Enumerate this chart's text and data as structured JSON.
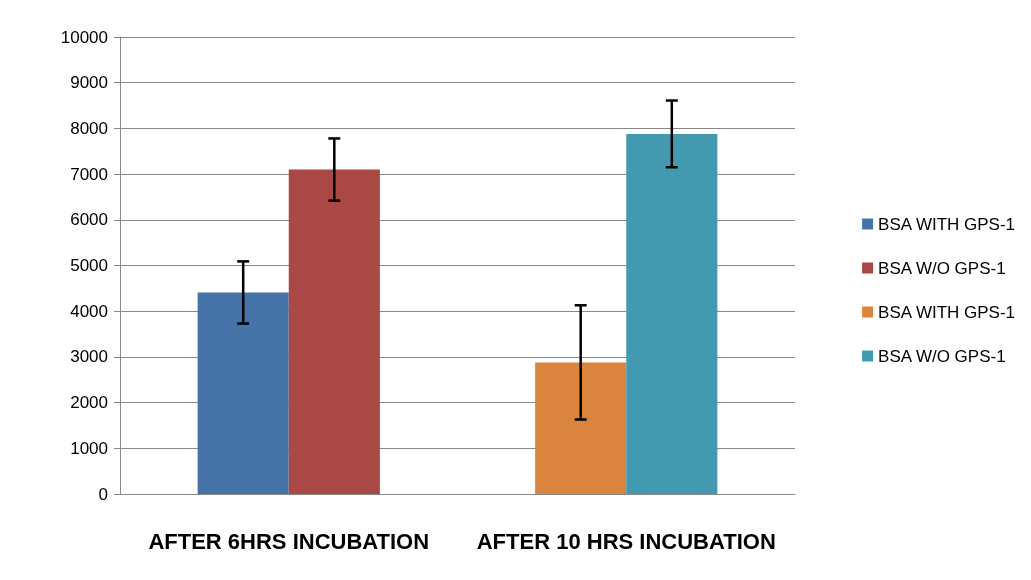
{
  "chart_data": {
    "type": "bar",
    "categories": [
      "AFTER 6HRS INCUBATION",
      "AFTER 10 HRS INCUBATION"
    ],
    "series": [
      {
        "name": "BSA WITH GPS-1",
        "color": "#4674a8",
        "values": [
          4410,
          null
        ],
        "errors": [
          680,
          null
        ]
      },
      {
        "name": "BSA W/O GPS-1",
        "color": "#aa4846",
        "values": [
          7100,
          null
        ],
        "errors": [
          680,
          null
        ]
      },
      {
        "name": "BSA WITH GPS-1",
        "color": "#db843e",
        "values": [
          null,
          2880
        ],
        "errors": [
          null,
          1250
        ]
      },
      {
        "name": "BSA W/O GPS-1",
        "color": "#4399b0",
        "values": [
          null,
          7880
        ],
        "errors": [
          null,
          730
        ]
      }
    ],
    "ylim": [
      0,
      10000
    ],
    "yticks": [
      0,
      1000,
      2000,
      3000,
      4000,
      5000,
      6000,
      7000,
      8000,
      9000,
      10000
    ],
    "grid": "y",
    "legend": "right"
  }
}
